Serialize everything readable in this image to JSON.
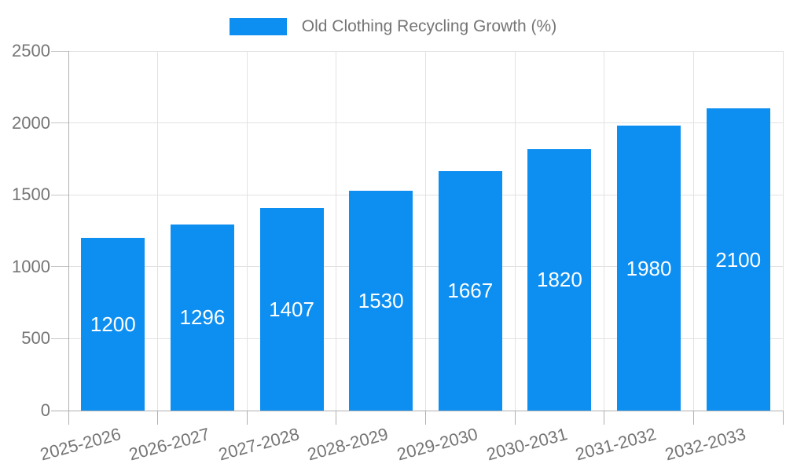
{
  "legend": {
    "label": "Old Clothing Recycling Growth (%)"
  },
  "chart_data": {
    "type": "bar",
    "title": "",
    "xlabel": "",
    "ylabel": "",
    "categories": [
      "2025-2026",
      "2026-2027",
      "2027-2028",
      "2028-2029",
      "2029-2030",
      "2030-2031",
      "2031-2032",
      "2032-2033"
    ],
    "series": [
      {
        "name": "Old Clothing Recycling Growth (%)",
        "values": [
          1200,
          1296,
          1407,
          1530,
          1667,
          1820,
          1980,
          2100
        ]
      }
    ],
    "y_ticks": [
      0,
      500,
      1000,
      1500,
      2000,
      2500
    ],
    "ylim": [
      0,
      2500
    ],
    "grid": true,
    "legend_position": "top",
    "bar_value_labels": "inside-center",
    "x_label_rotation_deg": -15
  },
  "colors": {
    "bar": "#0d8ff2",
    "axis": "#b0b0b0",
    "gridline": "#e2e2e2",
    "tick": "#c6c6c6",
    "text": "#757575",
    "bar_label": "#ffffff",
    "background": "#ffffff"
  }
}
